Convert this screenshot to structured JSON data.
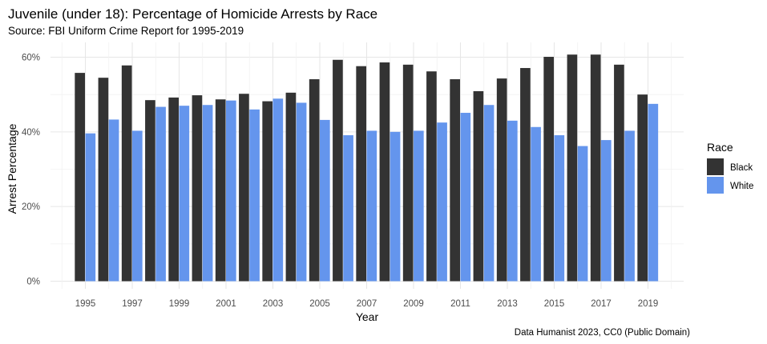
{
  "chart_data": {
    "type": "bar",
    "title": "Juvenile (under 18): Percentage of Homicide Arrests by Race",
    "subtitle": "Source: FBI Uniform Crime Report for 1995-2019",
    "xlabel": "Year",
    "ylabel": "Arrest Percentage",
    "caption": "Data Humanist 2023, CC0 (Public Domain)",
    "legend_title": "Race",
    "legend_position": "right",
    "grid": true,
    "ylim": [
      0,
      0.63
    ],
    "y_ticks": [
      0,
      0.2,
      0.4,
      0.6
    ],
    "y_tick_labels": [
      "0%",
      "20%",
      "40%",
      "60%"
    ],
    "x_tick_labels": [
      "1995",
      "1997",
      "1999",
      "2001",
      "2003",
      "2005",
      "2007",
      "2009",
      "2011",
      "2013",
      "2015",
      "2017",
      "2019"
    ],
    "categories": [
      "1995",
      "1996",
      "1997",
      "1998",
      "1999",
      "2000",
      "2001",
      "2002",
      "2003",
      "2004",
      "2005",
      "2006",
      "2007",
      "2008",
      "2009",
      "2010",
      "2011",
      "2012",
      "2013",
      "2014",
      "2015",
      "2016",
      "2017",
      "2018",
      "2019"
    ],
    "series": [
      {
        "name": "Black",
        "color": "#333333",
        "values": [
          0.558,
          0.545,
          0.578,
          0.485,
          0.492,
          0.498,
          0.487,
          0.502,
          0.482,
          0.505,
          0.541,
          0.593,
          0.576,
          0.586,
          0.58,
          0.562,
          0.541,
          0.509,
          0.543,
          0.571,
          0.601,
          0.607,
          0.607,
          0.58,
          0.5
        ]
      },
      {
        "name": "White",
        "color": "#6495ED",
        "values": [
          0.396,
          0.433,
          0.403,
          0.467,
          0.47,
          0.472,
          0.484,
          0.46,
          0.489,
          0.478,
          0.432,
          0.391,
          0.403,
          0.4,
          0.403,
          0.425,
          0.451,
          0.472,
          0.43,
          0.413,
          0.391,
          0.362,
          0.378,
          0.403,
          0.475
        ]
      }
    ]
  }
}
